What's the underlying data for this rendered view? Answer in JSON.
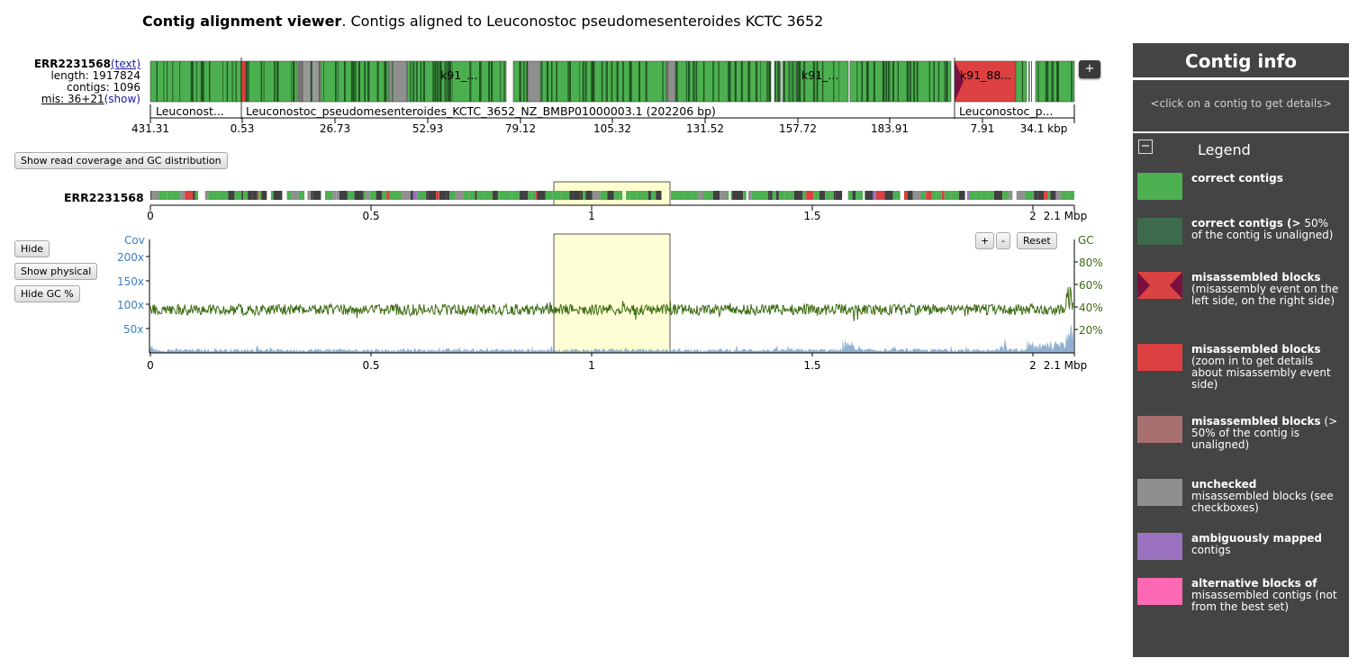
{
  "title": {
    "bold": "Contig alignment viewer",
    "rest": ". Contigs aligned to Leuconostoc pseudomesenteroides KCTC 3652"
  },
  "assembly": {
    "name": "ERR2231568",
    "text_link": "(text)",
    "length": "length: 1917824",
    "contigs": "contigs: 1096",
    "mis": "mis: 36+21",
    "show_link": "(show)",
    "overview_name": "ERR2231568"
  },
  "contig_labels": [
    "k91_...",
    "k91_...",
    "k91_88..."
  ],
  "chromosomes": [
    "Leuconost...",
    "Leuconostoc_pseudomesenteroides_KCTC_3652_NZ_BMBP01000003.1 (202206 bp)",
    "Leuconostoc_p..."
  ],
  "top_ticks": [
    "431.31",
    "0.53",
    "26.73",
    "52.93",
    "79.12",
    "105.32",
    "131.52",
    "157.72",
    "183.91",
    "7.91",
    "34.1 kbp"
  ],
  "overview_ticks": [
    "0",
    "0.5",
    "1",
    "1.5",
    "2",
    "2.1 Mbp"
  ],
  "coverage_ticks": [
    "0",
    "0.5",
    "1",
    "1.5",
    "2",
    "2.1 Mbp"
  ],
  "buttons": {
    "show_coverage": "Show read coverage and GC distribution",
    "hide": "Hide",
    "show_physical": "Show physical",
    "hide_gc": "Hide GC %",
    "zoom_in": "+",
    "zoom_out": "-",
    "reset": "Reset",
    "expand": "+"
  },
  "coverage_axis": {
    "label": "Cov",
    "ticks": [
      "200x",
      "150x",
      "100x",
      "50x"
    ]
  },
  "gc_axis": {
    "label": "GC",
    "ticks": [
      "80%",
      "60%",
      "40%",
      "20%"
    ]
  },
  "contig_info": {
    "title": "Contig info",
    "hint": "<click on a contig to get details>"
  },
  "legend": {
    "title": "Legend",
    "toggle": "−",
    "items": [
      {
        "bold": "correct contigs",
        "rest": "",
        "color": "#4caf50"
      },
      {
        "bold": "correct contigs (>",
        "rest": "50% of the contig is unaligned)",
        "color": "#3e6b4e"
      },
      {
        "bold": "misassembled blocks",
        "rest": "(misassembly event on the left side, on the right side)",
        "color": "#d94343"
      },
      {
        "bold": "misassembled blocks",
        "rest": "(zoom in to get details about misassembly event side)",
        "color": "#dc4040"
      },
      {
        "bold": "misassembled blocks",
        "rest": "(> 50% of the contig is unaligned)",
        "color": "#a87070"
      },
      {
        "bold": "unchecked",
        "rest": "misassembled blocks (see checkboxes)",
        "color": "#8f8f8f"
      },
      {
        "bold": "ambiguously mapped",
        "rest": "contigs",
        "color": "#9b72c0"
      },
      {
        "bold": "alternative blocks of",
        "rest": "misassembled contigs (not from the best set)",
        "color": "#ff69b4"
      }
    ]
  }
}
